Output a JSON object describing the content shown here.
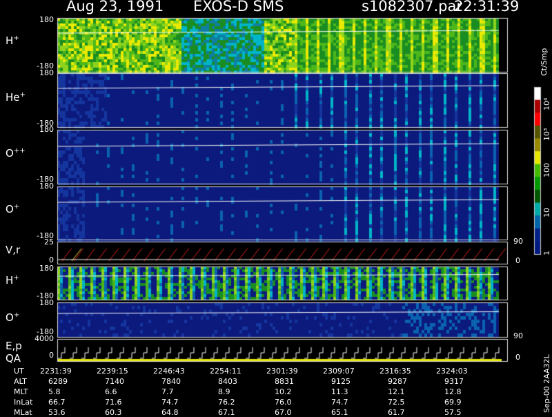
{
  "header": {
    "date": "Aug 23, 1991",
    "mission": "EXOS-D SMS",
    "file": "s1082307.par",
    "time": "22:31:39"
  },
  "panels": [
    {
      "id": "h_plus",
      "label": "H",
      "sup": "+",
      "ymax": "180",
      "ymin": "-180"
    },
    {
      "id": "he_plus",
      "label": "He",
      "sup": "+",
      "ymax": "180",
      "ymin": "-180"
    },
    {
      "id": "o_plusplus",
      "label": "O",
      "sup": "++",
      "ymax": "180",
      "ymin": "-180"
    },
    {
      "id": "o_plus",
      "label": "O",
      "sup": "+",
      "ymax": "180",
      "ymin": "-180"
    },
    {
      "id": "vr",
      "label": "V,r",
      "ymax": "25",
      "ymin": "0",
      "right_top": "90",
      "right_bottom": "0"
    },
    {
      "id": "h_plus_2",
      "label": "H",
      "sup": "+",
      "ymax": "180",
      "ymin": "-180"
    },
    {
      "id": "o_plus_2",
      "label": "O",
      "sup": "+",
      "ymax": "180",
      "ymin": "-180",
      "right_bottom": "90"
    },
    {
      "id": "ep_qa",
      "label": "E,p",
      "label2": "QA",
      "ymax": "4000",
      "ymin": "0",
      "right_bottom": "0"
    }
  ],
  "colorbar": {
    "unit": "Ct/Smp",
    "ticks": [
      "10⁴",
      "10³",
      "100",
      "10",
      "1"
    ],
    "colors": [
      "#ffffff",
      "#aa0000",
      "#ff0000",
      "#555500",
      "#998800",
      "#e6e600",
      "#44bb00",
      "#009900",
      "#005500",
      "#00aaaa",
      "#0066aa",
      "#002288",
      "#001a80"
    ]
  },
  "footer": {
    "row_labels": [
      "UT",
      "ALT",
      "MLT",
      "InLat",
      "MLat"
    ],
    "columns": [
      [
        "2231:39",
        "6289",
        "5.8",
        "66.7",
        "53.6"
      ],
      [
        "2239:15",
        "7140",
        "6.6",
        "71.6",
        "60.3"
      ],
      [
        "2246:43",
        "7840",
        "7.7",
        "74.7",
        "64.8"
      ],
      [
        "2254:11",
        "8403",
        "8.9",
        "76.2",
        "67.1"
      ],
      [
        "2301:39",
        "8831",
        "10.2",
        "76.0",
        "67.0"
      ],
      [
        "2309:07",
        "9125",
        "11.3",
        "74.7",
        "65.1"
      ],
      [
        "2316:35",
        "9287",
        "12.1",
        "72.5",
        "61.7"
      ],
      [
        "2324:03",
        "9317",
        "12.8",
        "69.9",
        "57.5"
      ]
    ],
    "side_note": "Sep-00 2AA32L"
  },
  "chart_data": {
    "type": "heatmap",
    "title": "Aug 23, 1991   EXOS-D SMS",
    "x": [
      "2231:39",
      "2239:15",
      "2246:43",
      "2254:11",
      "2301:39",
      "2309:07",
      "2316:35",
      "2324:03"
    ],
    "ylim": [
      -180,
      180
    ],
    "series": [
      {
        "name": "H+"
      },
      {
        "name": "He+"
      },
      {
        "name": "O++"
      },
      {
        "name": "O+"
      },
      {
        "name": "V,r"
      },
      {
        "name": "H+"
      },
      {
        "name": "O+"
      },
      {
        "name": "E,p"
      }
    ]
  }
}
